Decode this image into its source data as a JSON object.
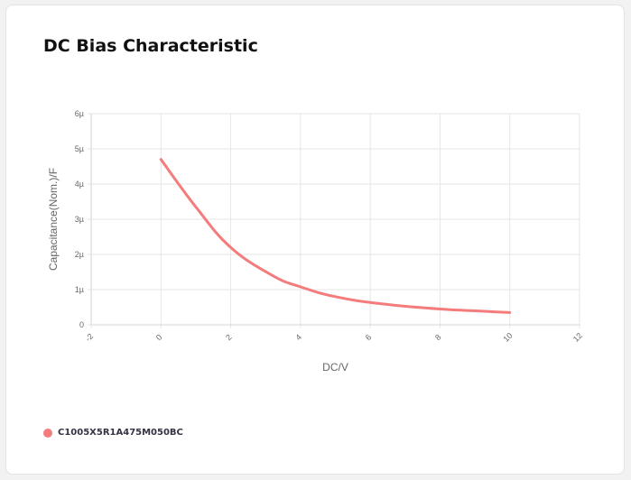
{
  "card": {
    "title": "DC Bias Characteristic"
  },
  "chart_data": {
    "type": "line",
    "title": "DC Bias Characteristic",
    "xlabel": "DC/V",
    "ylabel": "Capacitance(Nom.)/F",
    "xlim": [
      -2,
      12
    ],
    "ylim": [
      0,
      6
    ],
    "x_ticks": [
      "-2",
      "0",
      "2",
      "4",
      "6",
      "8",
      "10",
      "12"
    ],
    "y_ticks": [
      "0",
      "1µ",
      "2µ",
      "3µ",
      "4µ",
      "5µ",
      "6µ"
    ],
    "grid": true,
    "legend_position": "bottom-left",
    "series": [
      {
        "name": "C1005X5R1A475M050BC",
        "color": "#f47c7c",
        "x": [
          0,
          1,
          2,
          3.2,
          4,
          5,
          6.3,
          8,
          10
        ],
        "y": [
          4.7,
          3.35,
          2.2,
          1.4,
          1.08,
          0.8,
          0.6,
          0.45,
          0.35
        ]
      }
    ]
  }
}
